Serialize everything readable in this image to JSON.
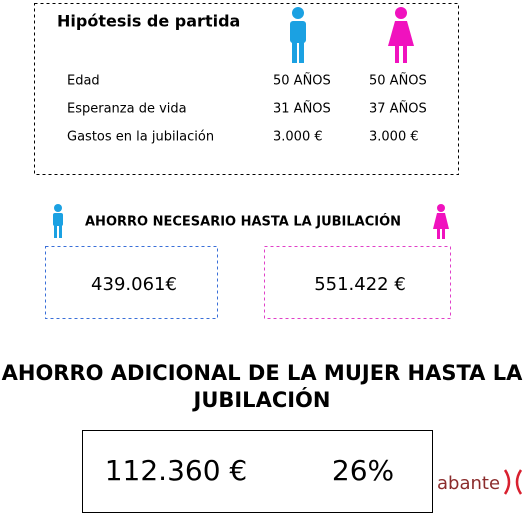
{
  "hypotheses": {
    "title": "Hipótesis de partida",
    "rows": [
      {
        "label": "Edad",
        "men": "50 AÑOS",
        "women": "50 AÑOS"
      },
      {
        "label": "Esperanza de vida",
        "men": "31 AÑOS",
        "women": "37 AÑOS"
      },
      {
        "label": "Gastos en la jubilación",
        "men": "3.000 €",
        "women": "3.000 €"
      }
    ]
  },
  "savings": {
    "title": "AHORRO NECESARIO HASTA LA JUBILACIÓN",
    "men": "439.061€",
    "women": "551.422 €"
  },
  "additional": {
    "title_lines": [
      "AHORRO ADICIONAL DE LA MUJER HASTA LA",
      "JUBILACIÓN"
    ],
    "amount": "112.360 €",
    "percent": "26%"
  },
  "logo": "abante"
}
